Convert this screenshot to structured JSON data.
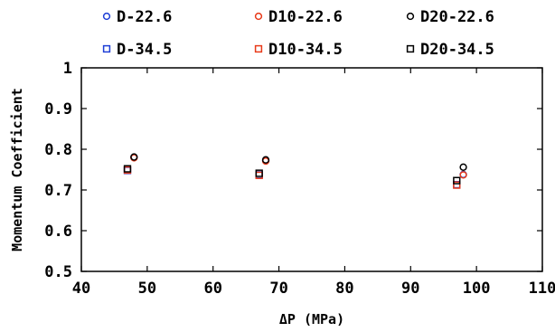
{
  "chart_data": {
    "type": "scatter",
    "title": "",
    "xlabel": "ΔP (MPa)",
    "ylabel": "Momentum Coefficient",
    "xlim": [
      40,
      110
    ],
    "ylim": [
      0.5,
      1.0
    ],
    "xticks": [
      40,
      50,
      60,
      70,
      80,
      90,
      100,
      110
    ],
    "yticks": [
      0.5,
      0.6,
      0.7,
      0.8,
      0.9,
      1.0
    ],
    "ytick_labels": [
      "0.5",
      "0.6",
      "0.7",
      "0.8",
      "0.9",
      "1"
    ],
    "grid": false,
    "legend_position": "top",
    "series": [
      {
        "name": "D-22.6",
        "marker": "circle",
        "color": "#1f3fd6",
        "points": [
          [
            48,
            0.78
          ],
          [
            68,
            0.772
          ],
          [
            98,
            0.738
          ]
        ]
      },
      {
        "name": "D10-22.6",
        "marker": "circle",
        "color": "#e83a1a",
        "points": [
          [
            48,
            0.779
          ],
          [
            68,
            0.771
          ],
          [
            98,
            0.737
          ]
        ]
      },
      {
        "name": "D20-22.6",
        "marker": "circle",
        "color": "#000000",
        "points": [
          [
            48,
            0.781
          ],
          [
            68,
            0.774
          ],
          [
            98,
            0.756
          ]
        ]
      },
      {
        "name": "D-34.5",
        "marker": "square",
        "color": "#1f3fd6",
        "points": [
          [
            47,
            0.748
          ],
          [
            67,
            0.737
          ],
          [
            97,
            0.713
          ]
        ]
      },
      {
        "name": "D10-34.5",
        "marker": "square",
        "color": "#e83a1a",
        "points": [
          [
            47,
            0.749
          ],
          [
            67,
            0.736
          ],
          [
            97,
            0.712
          ]
        ]
      },
      {
        "name": "D20-34.5",
        "marker": "square",
        "color": "#000000",
        "points": [
          [
            47,
            0.752
          ],
          [
            67,
            0.741
          ],
          [
            97,
            0.723
          ]
        ]
      }
    ]
  }
}
